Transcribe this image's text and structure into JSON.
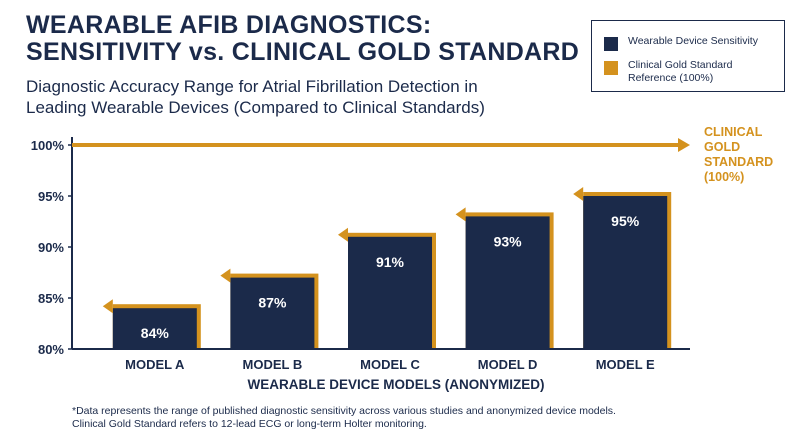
{
  "header": {
    "title_line1": "WEARABLE AFIB DIAGNOSTICS:",
    "title_line2": "SENSITIVITY vs. CLINICAL GOLD STANDARD",
    "subtitle_line1": "Diagnostic Accuracy Range for Atrial Fibrillation Detection in",
    "subtitle_line2": "Leading Wearable Devices (Compared to Clinical Standards)"
  },
  "legend": {
    "placement": "top-right",
    "items": [
      {
        "label": "Wearable Device Sensitivity",
        "color": "#1b2a4a"
      },
      {
        "label": "Clinical Gold Standard Reference (100%)",
        "color": "#d4921e"
      }
    ]
  },
  "footnote": {
    "line1": "*Data represents the range of published diagnostic sensitivity across various studies and anonymized device models.",
    "line2": "Clinical Gold Standard refers to 12-lead ECG or long-term Holter monitoring."
  },
  "chart_data": {
    "type": "bar",
    "title": "WEARABLE AFIB DIAGNOSTICS: SENSITIVITY vs. CLINICAL GOLD STANDARD",
    "xlabel": "WEARABLE DEVICE MODELS (ANONYMIZED)",
    "ylabel": "",
    "categories": [
      "MODEL A",
      "MODEL B",
      "MODEL C",
      "MODEL D",
      "MODEL E"
    ],
    "series": [
      {
        "name": "Wearable Device Sensitivity",
        "values": [
          84,
          87,
          91,
          93,
          95
        ]
      }
    ],
    "data_labels": [
      "84%",
      "87%",
      "91%",
      "93%",
      "95%"
    ],
    "ylim": [
      80,
      100
    ],
    "yticks": [
      80,
      85,
      90,
      95,
      100
    ],
    "ytick_labels": [
      "80%",
      "85%",
      "90%",
      "95%",
      "100%"
    ],
    "reference_line": {
      "value": 100,
      "label_lines": [
        "CLINICAL",
        "GOLD",
        "STANDARD",
        "(100%)"
      ]
    },
    "grid": false,
    "colors": {
      "bar": "#1b2a4a",
      "accent": "#d4921e",
      "axis": "#1b2a4a"
    }
  }
}
